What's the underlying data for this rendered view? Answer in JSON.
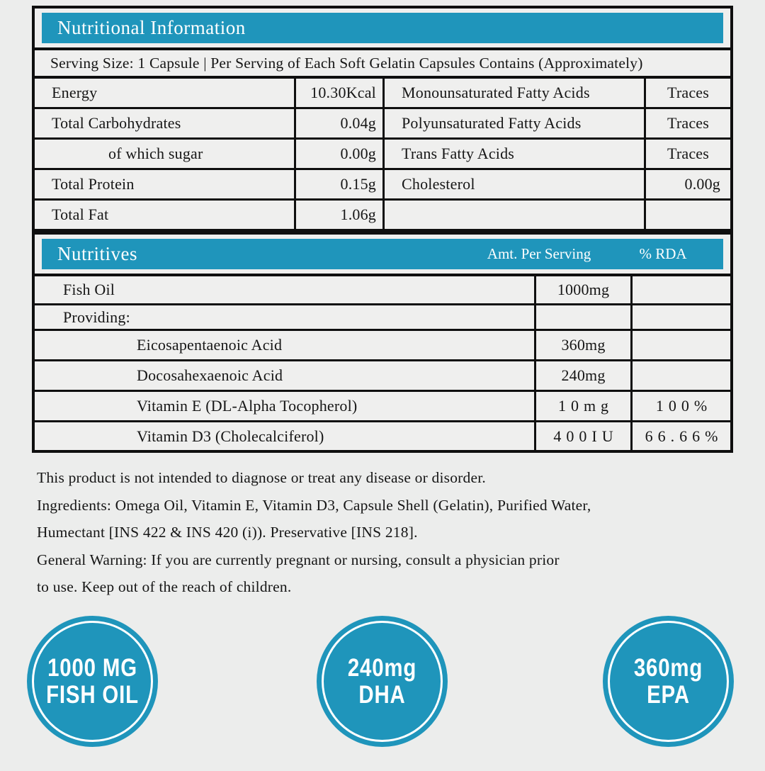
{
  "colors": {
    "accent": "#1f95bb",
    "border": "#0f0f0f",
    "background": "#ecedec",
    "badge_text": "#ffffff"
  },
  "section1": {
    "header": "Nutritional Information",
    "serving_line": "Serving Size: 1 Capsule | Per Serving of Each Soft Gelatin Capsules Contains (Approximately)",
    "rows": [
      {
        "l1": "Energy",
        "v1": "10.30Kcal",
        "l2": "Monounsaturated Fatty Acids",
        "v2": "Traces"
      },
      {
        "l1": "Total Carbohydrates",
        "v1": "0.04g",
        "l2": "Polyunsaturated Fatty Acids",
        "v2": "Traces"
      },
      {
        "l1": "of which sugar",
        "v1": "0.00g",
        "l2": "Trans Fatty Acids",
        "v2": "Traces"
      },
      {
        "l1": "Total Protein",
        "v1": "0.15g",
        "l2": "Cholesterol",
        "v2": "0.00g"
      },
      {
        "l1": "Total Fat",
        "v1": "1.06g",
        "l2": "",
        "v2": ""
      }
    ]
  },
  "section2": {
    "header": "Nutritives",
    "col_amt": "Amt. Per Serving",
    "col_rda": "% RDA",
    "rows": [
      {
        "label": "Fish Oil",
        "amt": "1000mg",
        "rda": ""
      },
      {
        "label": "Providing:",
        "amt": "",
        "rda": ""
      },
      {
        "label": "Eicosapentaenoic Acid",
        "amt": "360mg",
        "rda": ""
      },
      {
        "label": "Docosahexaenoic Acid",
        "amt": "240mg",
        "rda": ""
      },
      {
        "label": "Vitamin E (DL-Alpha Tocopherol)",
        "amt": "10mg",
        "rda": "100%"
      },
      {
        "label": "Vitamin D3 (Cholecalciferol)",
        "amt": "400IU",
        "rda": "66.66%"
      }
    ]
  },
  "notes": {
    "lines": [
      "This product is not intended to diagnose or treat any disease or disorder.",
      "Ingredients: Omega Oil, Vitamin E, Vitamin D3, Capsule Shell (Gelatin), Purified Water,",
      "Humectant [INS 422 & INS 420 (i)). Preservative [INS 218].",
      "General Warning: If you are currently pregnant or nursing, consult a physician prior",
      "to use. Keep out of the reach of children."
    ]
  },
  "badges": [
    {
      "line1": "1000 MG",
      "line2": "FISH OIL"
    },
    {
      "line1": "240mg",
      "line2": "DHA"
    },
    {
      "line1": "360mg",
      "line2": "EPA"
    }
  ]
}
